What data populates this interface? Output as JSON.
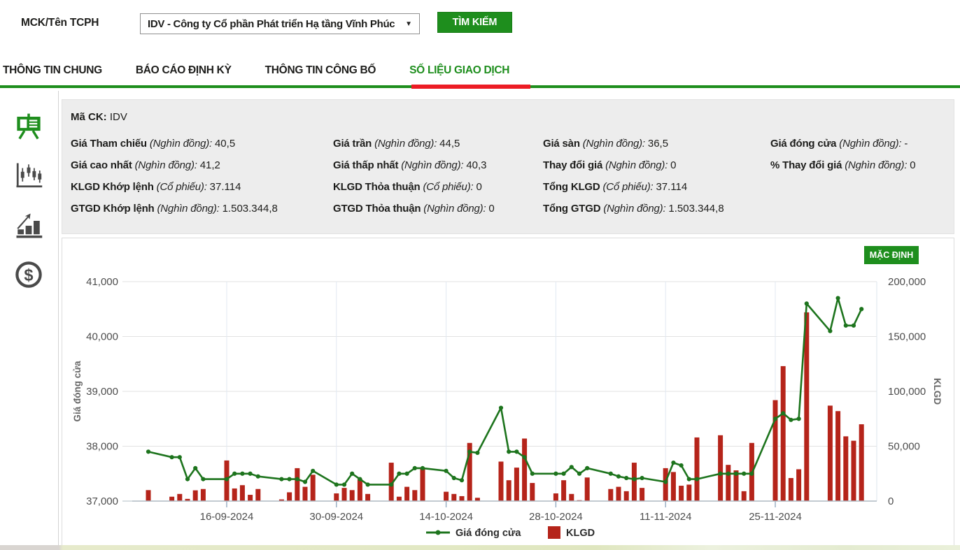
{
  "colors": {
    "accent_green": "#1e8e1d",
    "underline_red": "#ec1c24",
    "line_green": "#1d741d",
    "bar_red": "#b5241a",
    "panel_gray": "#ededed"
  },
  "header": {
    "label": "MCK/Tên TCPH",
    "select_value": "IDV - Công ty Cổ phần Phát triển Hạ tầng Vĩnh Phúc",
    "caret": "▼",
    "search_button": "TÌM KIẾM"
  },
  "tabs": [
    {
      "label": "THÔNG TIN CHUNG",
      "active": false
    },
    {
      "label": "BÁO CÁO ĐỊNH KỲ",
      "active": false
    },
    {
      "label": "THÔNG TIN CÔNG BỐ",
      "active": false
    },
    {
      "label": "SỐ LIỆU GIAO DỊCH",
      "active": true
    }
  ],
  "sidebar": {
    "items": [
      {
        "icon": "presentation-chart-icon",
        "active": true
      },
      {
        "icon": "candlestick-chart-icon",
        "active": false
      },
      {
        "icon": "bar-chart-icon",
        "active": false
      },
      {
        "icon": "dollar-coin-icon",
        "active": false
      }
    ]
  },
  "stats": {
    "ma_ck_label": "Mã CK:",
    "ma_ck_value": "IDV",
    "columns": [
      [
        {
          "label": "Giá Tham chiếu",
          "unit": "(Nghìn đồng):",
          "value": "40,5"
        },
        {
          "label": "Giá cao nhất",
          "unit": "(Nghìn đồng):",
          "value": "41,2"
        },
        {
          "label": "KLGD Khớp lệnh",
          "unit": "(Cổ phiếu):",
          "value": "37.114"
        },
        {
          "label": "GTGD Khớp lệnh",
          "unit": "(Nghìn đồng):",
          "value": "1.503.344,8"
        }
      ],
      [
        {
          "label": "Giá trần",
          "unit": "(Nghìn đồng):",
          "value": "44,5"
        },
        {
          "label": "Giá thấp nhất",
          "unit": "(Nghìn đồng):",
          "value": "40,3"
        },
        {
          "label": "KLGD Thỏa thuận",
          "unit": "(Cổ phiếu):",
          "value": "0"
        },
        {
          "label": "GTGD Thỏa thuận",
          "unit": "(Nghìn đồng):",
          "value": "0"
        }
      ],
      [
        {
          "label": "Giá sàn",
          "unit": "(Nghìn đồng):",
          "value": "36,5"
        },
        {
          "label": "Thay đổi giá",
          "unit": "(Nghìn đồng):",
          "value": "0"
        },
        {
          "label": "Tổng KLGD",
          "unit": "(Cổ phiếu):",
          "value": "37.114"
        },
        {
          "label": "Tổng GTGD",
          "unit": "(Nghìn đồng):",
          "value": "1.503.344,8"
        }
      ],
      [
        {
          "label": "Giá đóng cửa",
          "unit": "(Nghìn đồng):",
          "value": "-"
        },
        {
          "label": "% Thay đổi giá",
          "unit": "(Nghìn đồng):",
          "value": "0"
        }
      ]
    ]
  },
  "chart": {
    "default_button": "MẶC ĐỊNH"
  },
  "chart_data": {
    "type": "line+bar",
    "title": "",
    "x_axis": {
      "tick_labels": [
        "16-09-2024",
        "30-09-2024",
        "14-10-2024",
        "28-10-2024",
        "11-11-2024",
        "25-11-2024"
      ]
    },
    "left_axis": {
      "label": "Giá đóng cửa",
      "min": 37000,
      "max": 41000,
      "tick_labels": [
        "41,000",
        "40,000",
        "39,000",
        "38,000",
        "37,000"
      ]
    },
    "right_axis": {
      "label": "KLGD",
      "min": 0,
      "max": 200000,
      "tick_labels": [
        "200,000",
        "150,000",
        "100,000",
        "50,000",
        "0"
      ]
    },
    "legend": [
      {
        "label": "Giá đóng cửa",
        "type": "line",
        "color": "#1d741d"
      },
      {
        "label": "KLGD",
        "type": "bar",
        "color": "#b5241a"
      }
    ],
    "points": [
      {
        "date": "06-09-2024",
        "close": 37900,
        "klgd": 10000
      },
      {
        "date": "09-09-2024",
        "close": 37800,
        "klgd": 4000
      },
      {
        "date": "10-09-2024",
        "close": 37800,
        "klgd": 6500
      },
      {
        "date": "11-09-2024",
        "close": 37400,
        "klgd": 2000
      },
      {
        "date": "12-09-2024",
        "close": 37600,
        "klgd": 9800
      },
      {
        "date": "13-09-2024",
        "close": 37400,
        "klgd": 11000
      },
      {
        "date": "16-09-2024",
        "close": 37400,
        "klgd": 37000
      },
      {
        "date": "17-09-2024",
        "close": 37500,
        "klgd": 11500
      },
      {
        "date": "18-09-2024",
        "close": 37500,
        "klgd": 14500
      },
      {
        "date": "19-09-2024",
        "close": 37500,
        "klgd": 5700
      },
      {
        "date": "20-09-2024",
        "close": 37450,
        "klgd": 11000
      },
      {
        "date": "23-09-2024",
        "close": 37400,
        "klgd": 1500
      },
      {
        "date": "24-09-2024",
        "close": 37400,
        "klgd": 8000
      },
      {
        "date": "25-09-2024",
        "close": 37400,
        "klgd": 30000
      },
      {
        "date": "26-09-2024",
        "close": 37350,
        "klgd": 13000
      },
      {
        "date": "27-09-2024",
        "close": 37550,
        "klgd": 24000
      },
      {
        "date": "30-09-2024",
        "close": 37300,
        "klgd": 7000
      },
      {
        "date": "01-10-2024",
        "close": 37300,
        "klgd": 12000
      },
      {
        "date": "02-10-2024",
        "close": 37500,
        "klgd": 10000
      },
      {
        "date": "03-10-2024",
        "close": 37400,
        "klgd": 20000
      },
      {
        "date": "04-10-2024",
        "close": 37300,
        "klgd": 6500
      },
      {
        "date": "07-10-2024",
        "close": 37300,
        "klgd": 35000
      },
      {
        "date": "08-10-2024",
        "close": 37500,
        "klgd": 4000
      },
      {
        "date": "09-10-2024",
        "close": 37500,
        "klgd": 13000
      },
      {
        "date": "10-10-2024",
        "close": 37600,
        "klgd": 10000
      },
      {
        "date": "11-10-2024",
        "close": 37600,
        "klgd": 30000
      },
      {
        "date": "14-10-2024",
        "close": 37550,
        "klgd": 8500
      },
      {
        "date": "15-10-2024",
        "close": 37420,
        "klgd": 6500
      },
      {
        "date": "16-10-2024",
        "close": 37380,
        "klgd": 4500
      },
      {
        "date": "17-10-2024",
        "close": 37900,
        "klgd": 53000
      },
      {
        "date": "18-10-2024",
        "close": 37880,
        "klgd": 3000
      },
      {
        "date": "21-10-2024",
        "close": 38700,
        "klgd": 36000
      },
      {
        "date": "22-10-2024",
        "close": 37900,
        "klgd": 19000
      },
      {
        "date": "23-10-2024",
        "close": 37900,
        "klgd": 30500
      },
      {
        "date": "24-10-2024",
        "close": 37800,
        "klgd": 57000
      },
      {
        "date": "25-10-2024",
        "close": 37500,
        "klgd": 16500
      },
      {
        "date": "28-10-2024",
        "close": 37500,
        "klgd": 7000
      },
      {
        "date": "29-10-2024",
        "close": 37500,
        "klgd": 19000
      },
      {
        "date": "30-10-2024",
        "close": 37620,
        "klgd": 6500
      },
      {
        "date": "31-10-2024",
        "close": 37500,
        "klgd": 800
      },
      {
        "date": "01-11-2024",
        "close": 37600,
        "klgd": 21500
      },
      {
        "date": "04-11-2024",
        "close": 37500,
        "klgd": 11000
      },
      {
        "date": "05-11-2024",
        "close": 37450,
        "klgd": 13000
      },
      {
        "date": "06-11-2024",
        "close": 37420,
        "klgd": 9000
      },
      {
        "date": "07-11-2024",
        "close": 37400,
        "klgd": 35000
      },
      {
        "date": "08-11-2024",
        "close": 37420,
        "klgd": 12000
      },
      {
        "date": "11-11-2024",
        "close": 37350,
        "klgd": 30000
      },
      {
        "date": "12-11-2024",
        "close": 37700,
        "klgd": 26500
      },
      {
        "date": "13-11-2024",
        "close": 37650,
        "klgd": 14000
      },
      {
        "date": "14-11-2024",
        "close": 37400,
        "klgd": 15000
      },
      {
        "date": "15-11-2024",
        "close": 37400,
        "klgd": 58000
      },
      {
        "date": "18-11-2024",
        "close": 37500,
        "klgd": 60000
      },
      {
        "date": "19-11-2024",
        "close": 37500,
        "klgd": 33000
      },
      {
        "date": "20-11-2024",
        "close": 37500,
        "klgd": 28000
      },
      {
        "date": "21-11-2024",
        "close": 37500,
        "klgd": 9000
      },
      {
        "date": "22-11-2024",
        "close": 37500,
        "klgd": 53000
      },
      {
        "date": "25-11-2024",
        "close": 38500,
        "klgd": 92000
      },
      {
        "date": "26-11-2024",
        "close": 38600,
        "klgd": 123000
      },
      {
        "date": "27-11-2024",
        "close": 38480,
        "klgd": 21000
      },
      {
        "date": "28-11-2024",
        "close": 38500,
        "klgd": 29000
      },
      {
        "date": "29-11-2024",
        "close": 40600,
        "klgd": 172000
      },
      {
        "date": "02-12-2024",
        "close": 40100,
        "klgd": 87000
      },
      {
        "date": "03-12-2024",
        "close": 40700,
        "klgd": 82000
      },
      {
        "date": "04-12-2024",
        "close": 40200,
        "klgd": 59000
      },
      {
        "date": "05-12-2024",
        "close": 40200,
        "klgd": 55000
      },
      {
        "date": "06-12-2024",
        "close": 40500,
        "klgd": 70000
      }
    ]
  }
}
